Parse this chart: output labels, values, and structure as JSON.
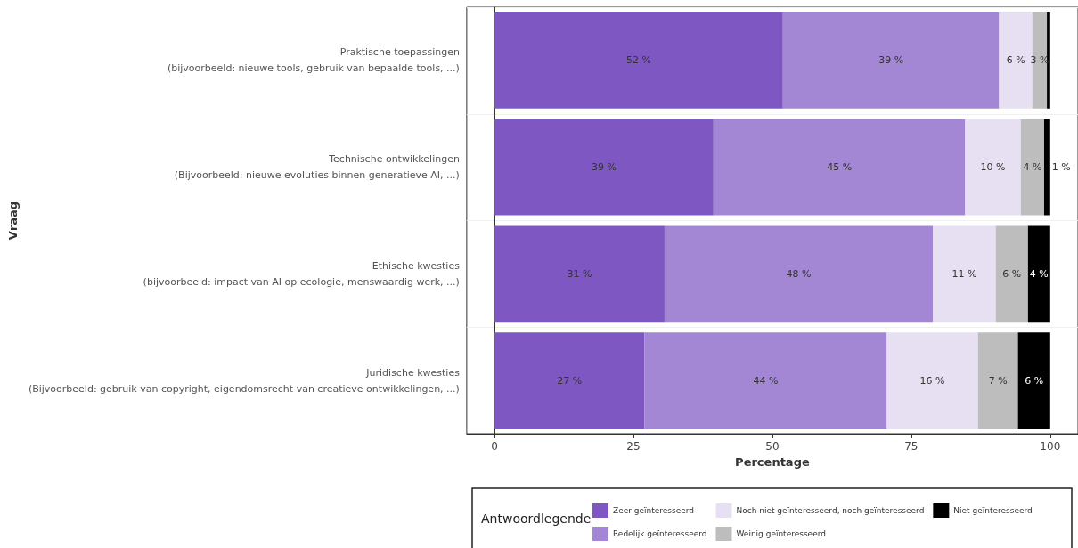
{
  "chart_data": {
    "type": "bar",
    "orientation": "horizontal",
    "stacked": true,
    "xlabel": "Percentage",
    "ylabel": "Vraag",
    "legend_title": "Antwoordlegende",
    "categories": [
      "Praktische toepassingen\n(bijvoorbeeld: nieuwe tools, gebruik van bepaalde tools, ...)",
      "Technische ontwikkelingen\n(Bijvoorbeeld: nieuwe evoluties binnen generatieve AI, ...)",
      "Ethische kwesties\n(bijvoorbeeld: impact van AI op ecologie, menswaardig werk, ...)",
      "Juridische kwesties\n(Bijvoorbeeld: gebruik van copyright, eigendomsrecht van creatieve ontwikkelingen, ...)"
    ],
    "series": [
      {
        "name": "Zeer geïnteresseerd",
        "color": "#7e57c2",
        "values": [
          51.9,
          39.4,
          30.6,
          27
        ],
        "value_labels": [
          "52 %",
          "39 %",
          "31 %",
          "27 %"
        ]
      },
      {
        "name": "Redelijk geïnteresseerd",
        "color": "#a387d5",
        "values": [
          38.9,
          45.3,
          48.3,
          43.6
        ],
        "value_labels": [
          "39 %",
          "45 %",
          "48 %",
          "44 %"
        ]
      },
      {
        "name": "Noch niet geïnteresseerd, noch geïnteresseerd",
        "color": "#e6e0f2",
        "values": [
          6.0,
          10,
          11.3,
          16.4
        ],
        "value_labels": [
          "6 %",
          "10 %",
          "11 %",
          "16 %"
        ]
      },
      {
        "name": "Weinig geïnteresseerd",
        "color": "#bdbdbd",
        "values": [
          2.6,
          4.2,
          5.8,
          7.2
        ],
        "value_labels": [
          "3 %",
          "4 %",
          "6 %",
          "7 %"
        ]
      },
      {
        "name": "Niet geïnteresseerd",
        "color": "#000000",
        "values": [
          0.6,
          1.1,
          4,
          5.8
        ],
        "value_labels": [
          null,
          "1 %",
          "4 %",
          "6 %"
        ]
      }
    ],
    "xlim": [
      -5,
      105
    ],
    "xticks": [
      0,
      25,
      50,
      75,
      100
    ],
    "grid": "y",
    "legend": "bottom"
  }
}
